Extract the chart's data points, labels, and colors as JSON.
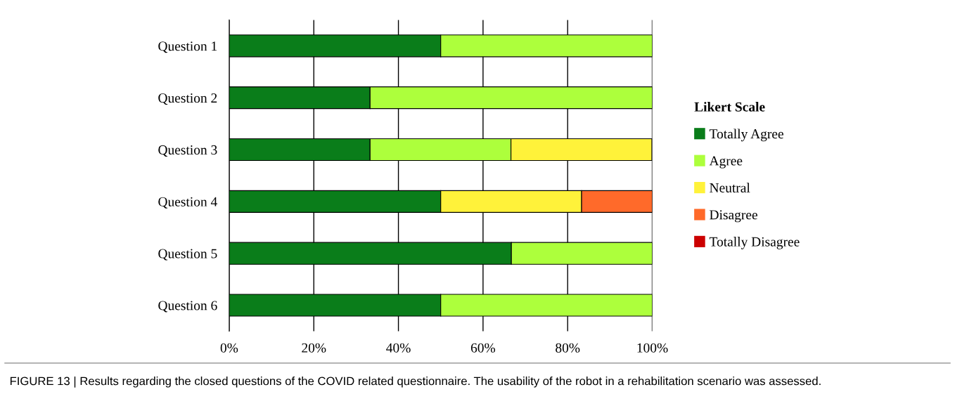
{
  "chart_data": {
    "type": "bar",
    "orientation": "horizontal",
    "stacked": true,
    "categories": [
      "Question 1",
      "Question 2",
      "Question 3",
      "Question 4",
      "Question 5",
      "Question 6"
    ],
    "series": [
      {
        "name": "Totally Agree",
        "color": "#0a7d1a",
        "values": [
          50,
          33.3,
          33.3,
          50,
          66.7,
          50
        ]
      },
      {
        "name": "Agree",
        "color": "#adff3c",
        "values": [
          50,
          66.7,
          33.3,
          0,
          33.3,
          50
        ]
      },
      {
        "name": "Neutral",
        "color": "#fff23a",
        "values": [
          0,
          0,
          33.3,
          33.3,
          0,
          0
        ]
      },
      {
        "name": "Disagree",
        "color": "#ff6a2a",
        "values": [
          0,
          0,
          0,
          16.7,
          0,
          0
        ]
      },
      {
        "name": "Totally Disagree",
        "color": "#cc0000",
        "values": [
          0,
          0,
          0,
          0,
          0,
          0
        ]
      }
    ],
    "xlim": [
      0,
      100
    ],
    "xticks": [
      {
        "value": 0,
        "label": "0%"
      },
      {
        "value": 20,
        "label": "20%"
      },
      {
        "value": 40,
        "label": "40%"
      },
      {
        "value": 60,
        "label": "60%"
      },
      {
        "value": 80,
        "label": "80%"
      },
      {
        "value": 100,
        "label": "100%"
      }
    ],
    "grid": "x",
    "legend": "right",
    "legend_title": "Likert Scale",
    "annotations": [
      "FIGURE 13 | Results regarding the closed questions of the COVID related questionnaire. The usability of the robot in a rehabilitation scenario was assessed."
    ]
  }
}
